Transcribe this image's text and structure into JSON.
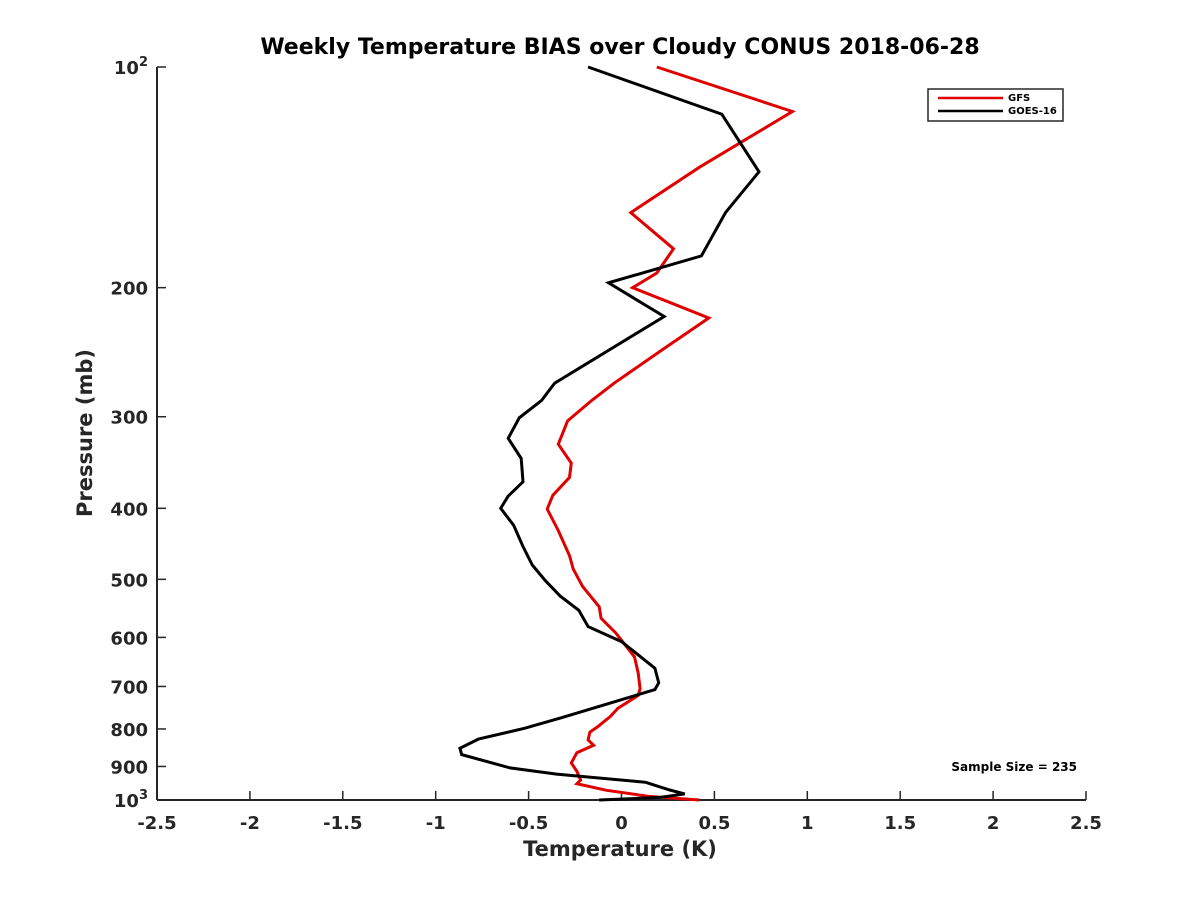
{
  "chart_data": {
    "type": "line",
    "title": "Weekly Temperature BIAS over Cloudy CONUS 2018-06-28",
    "xlabel": "Temperature (K)",
    "ylabel": "Pressure (mb)",
    "xlim": [
      -2.5,
      2.5
    ],
    "ylim": [
      1000,
      100
    ],
    "yscale": "log",
    "x_ticks": [
      {
        "value": -2.5,
        "label": "-2.5"
      },
      {
        "value": -2,
        "label": "-2"
      },
      {
        "value": -1.5,
        "label": "-1.5"
      },
      {
        "value": -1,
        "label": "-1"
      },
      {
        "value": -0.5,
        "label": "-0.5"
      },
      {
        "value": 0,
        "label": "0"
      },
      {
        "value": 0.5,
        "label": "0.5"
      },
      {
        "value": 1,
        "label": "1"
      },
      {
        "value": 1.5,
        "label": "1.5"
      },
      {
        "value": 2,
        "label": "2"
      },
      {
        "value": 2.5,
        "label": "2.5"
      }
    ],
    "y_ticks": [
      {
        "value": 100,
        "label": "",
        "base": "10",
        "exp": "2"
      },
      {
        "value": 200,
        "label": "200"
      },
      {
        "value": 300,
        "label": "300"
      },
      {
        "value": 400,
        "label": "400"
      },
      {
        "value": 500,
        "label": "500"
      },
      {
        "value": 600,
        "label": "600"
      },
      {
        "value": 700,
        "label": "700"
      },
      {
        "value": 800,
        "label": "800"
      },
      {
        "value": 900,
        "label": "900"
      },
      {
        "value": 1000,
        "label": "",
        "base": "10",
        "exp": "3"
      }
    ],
    "grid": false,
    "legend_position": "top-right",
    "annotation": "Sample Size = 235",
    "series": [
      {
        "name": "GFS",
        "color": "#e00000",
        "points": [
          [
            0.19,
            100
          ],
          [
            0.92,
            115
          ],
          [
            0.42,
            137
          ],
          [
            0.05,
            158
          ],
          [
            0.28,
            177
          ],
          [
            0.19,
            191
          ],
          [
            0.06,
            200
          ],
          [
            0.47,
            220
          ],
          [
            0.21,
            244
          ],
          [
            -0.04,
            270
          ],
          [
            -0.16,
            285
          ],
          [
            -0.29,
            304
          ],
          [
            -0.34,
            327
          ],
          [
            -0.27,
            347
          ],
          [
            -0.28,
            363
          ],
          [
            -0.37,
            384
          ],
          [
            -0.4,
            401
          ],
          [
            -0.34,
            429
          ],
          [
            -0.28,
            464
          ],
          [
            -0.26,
            484
          ],
          [
            -0.21,
            511
          ],
          [
            -0.12,
            545
          ],
          [
            -0.11,
            565
          ],
          [
            -0.03,
            592
          ],
          [
            0.07,
            638
          ],
          [
            0.09,
            671
          ],
          [
            0.1,
            705
          ],
          [
            0.09,
            720
          ],
          [
            -0.02,
            750
          ],
          [
            -0.06,
            769
          ],
          [
            -0.13,
            795
          ],
          [
            -0.17,
            808
          ],
          [
            -0.18,
            828
          ],
          [
            -0.15,
            842
          ],
          [
            -0.24,
            862
          ],
          [
            -0.27,
            890
          ],
          [
            -0.24,
            914
          ],
          [
            -0.22,
            939
          ],
          [
            -0.24,
            950
          ],
          [
            -0.08,
            970
          ],
          [
            0.14,
            988
          ],
          [
            0.42,
            1000
          ]
        ]
      },
      {
        "name": "GOES-16",
        "color": "#000000",
        "points": [
          [
            -0.18,
            100
          ],
          [
            0.54,
            116
          ],
          [
            0.74,
            139
          ],
          [
            0.56,
            158
          ],
          [
            0.43,
            181
          ],
          [
            -0.07,
            197
          ],
          [
            0.23,
            219
          ],
          [
            -0.36,
            270
          ],
          [
            -0.43,
            285
          ],
          [
            -0.55,
            301
          ],
          [
            -0.61,
            321
          ],
          [
            -0.54,
            342
          ],
          [
            -0.53,
            368
          ],
          [
            -0.61,
            385
          ],
          [
            -0.65,
            400
          ],
          [
            -0.58,
            422
          ],
          [
            -0.53,
            451
          ],
          [
            -0.48,
            478
          ],
          [
            -0.41,
            502
          ],
          [
            -0.33,
            527
          ],
          [
            -0.23,
            551
          ],
          [
            -0.18,
            580
          ],
          [
            0.0,
            608
          ],
          [
            0.18,
            661
          ],
          [
            0.2,
            692
          ],
          [
            0.18,
            707
          ],
          [
            -0.32,
            772
          ],
          [
            -0.52,
            798
          ],
          [
            -0.77,
            826
          ],
          [
            -0.87,
            850
          ],
          [
            -0.86,
            867
          ],
          [
            -0.6,
            904
          ],
          [
            -0.35,
            922
          ],
          [
            0.13,
            946
          ],
          [
            0.26,
            969
          ],
          [
            0.34,
            981
          ],
          [
            0.21,
            992
          ],
          [
            -0.12,
            1000
          ]
        ]
      }
    ]
  }
}
